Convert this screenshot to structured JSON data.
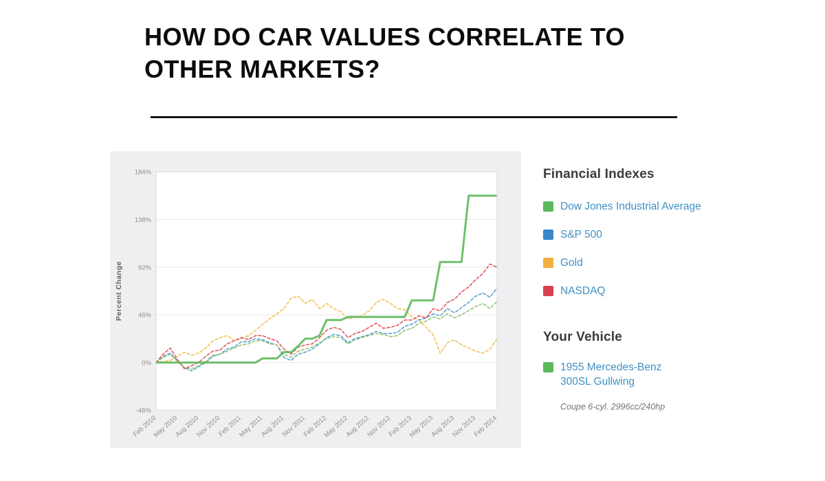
{
  "header": {
    "title_line1": "HOW DO CAR VALUES CORRELATE TO",
    "title_line2": "OTHER MARKETS?"
  },
  "chart_data": {
    "type": "line",
    "ylabel": "Percent Change",
    "ylim": [
      -46,
      184
    ],
    "y_ticks": [
      "184%",
      "138%",
      "92%",
      "46%",
      "0%",
      "-46%"
    ],
    "grid": "horizontal",
    "legend_position": "right-outside",
    "x_labels": [
      "Feb 2010",
      "May 2010",
      "Aug 2010",
      "Nov 2010",
      "Feb 2011",
      "May 2011",
      "Aug 2011",
      "Nov 2011",
      "Feb 2012",
      "May 2012",
      "Aug 2012",
      "Nov 2012",
      "Feb 2013",
      "May 2013",
      "Aug 2013",
      "Nov 2013",
      "Feb 2014"
    ],
    "points_per_label": 3,
    "x_note": "monthly data points, Feb 2010 - Feb 2014, values are percent change",
    "series": [
      {
        "name": "Gold",
        "color": "#f6c155",
        "style": "dashed",
        "values": [
          0,
          1,
          2,
          6,
          10,
          7,
          9,
          14,
          21,
          24,
          26,
          21,
          23,
          26,
          31,
          37,
          42,
          47,
          52,
          62,
          64,
          57,
          61,
          52,
          57,
          52,
          49,
          42,
          44,
          45,
          50,
          58,
          61,
          57,
          52,
          51,
          44,
          41,
          34,
          27,
          9,
          19,
          22,
          17,
          14,
          11,
          9,
          13,
          23
        ]
      },
      {
        "name": "S&P 500",
        "color": "#55a0d3",
        "style": "dashed",
        "values": [
          0,
          6,
          9,
          2,
          -5,
          -8,
          -4,
          0,
          6,
          8,
          13,
          15,
          20,
          20,
          23,
          22,
          19,
          17,
          5,
          2,
          8,
          10,
          13,
          18,
          24,
          27,
          26,
          19,
          23,
          25,
          27,
          30,
          28,
          28,
          29,
          35,
          37,
          41,
          43,
          47,
          45,
          52,
          48,
          53,
          58,
          64,
          67,
          63,
          72
        ]
      },
      {
        "name": "Dow Jones Industrial Average",
        "color": "#94c576",
        "style": "dashed",
        "values": [
          0,
          5,
          8,
          1,
          -5,
          -6,
          -3,
          1,
          7,
          8,
          11,
          14,
          17,
          18,
          21,
          21,
          18,
          17,
          8,
          5,
          11,
          13,
          15,
          19,
          23,
          25,
          24,
          18,
          22,
          24,
          26,
          28,
          27,
          25,
          26,
          31,
          33,
          38,
          40,
          44,
          42,
          47,
          43,
          46,
          50,
          54,
          57,
          52,
          59
        ]
      },
      {
        "name": "NASDAQ",
        "color": "#e25562",
        "style": "dashed",
        "values": [
          0,
          8,
          14,
          3,
          -6,
          -3,
          0,
          6,
          11,
          12,
          18,
          21,
          24,
          22,
          26,
          26,
          23,
          21,
          13,
          8,
          15,
          17,
          18,
          24,
          31,
          34,
          32,
          24,
          28,
          30,
          34,
          38,
          33,
          34,
          36,
          41,
          41,
          45,
          43,
          52,
          50,
          58,
          61,
          68,
          73,
          80,
          86,
          95,
          92
        ]
      },
      {
        "name": "1955 Mercedes-Benz 300SL Gullwing",
        "color": "#5db95c",
        "style": "solid",
        "values": [
          0,
          0,
          0,
          0,
          0,
          0,
          0,
          0,
          0,
          0,
          0,
          0,
          0,
          0,
          0,
          4,
          4,
          4,
          10,
          10,
          16,
          23,
          23,
          26,
          41,
          41,
          41,
          44,
          44,
          44,
          44,
          44,
          44,
          44,
          44,
          44,
          60,
          60,
          60,
          60,
          97,
          97,
          97,
          97,
          161,
          161,
          161,
          161,
          161
        ]
      }
    ]
  },
  "legend": {
    "financial_heading": "Financial Indexes",
    "financial_items": [
      {
        "label": "Dow Jones Industrial Average",
        "color": "#5cb85c"
      },
      {
        "label": "S&P 500",
        "color": "#3987c9"
      },
      {
        "label": "Gold",
        "color": "#f0b041"
      },
      {
        "label": "NASDAQ",
        "color": "#d9414e"
      }
    ],
    "vehicle_heading": "Your Vehicle",
    "vehicle_item": {
      "label_line1": "1955 Mercedes-Benz",
      "label_line2": "300SL Gullwing",
      "color": "#5cb85c"
    },
    "vehicle_spec": "Coupe 6-cyl. 2996cc/240hp"
  }
}
